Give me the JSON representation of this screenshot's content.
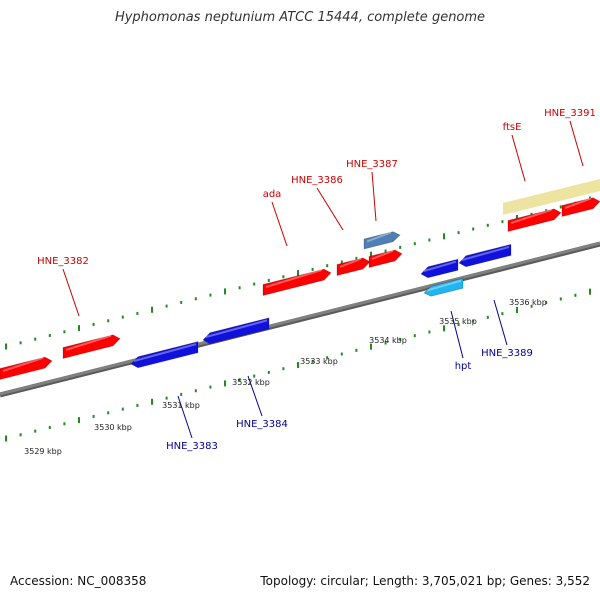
{
  "title": "Hyphomonas neptunium ATCC 15444, complete genome",
  "footer": {
    "accession": "Accession: NC_008358",
    "summary": "Topology: circular; Length: 3,705,021 bp; Genes: 3,552"
  },
  "colors": {
    "forward_gene": "#ff0000",
    "reverse_gene": "#1111dd",
    "feature_blue": "#4f7fb5",
    "feature_cyan": "#21b5f2",
    "feature_khaki": "#ece4a0",
    "forward_label": "#cc0000",
    "reverse_label": "#000099",
    "tick": "#228b22",
    "backbone": "#808080"
  },
  "scale": {
    "ticks": [
      {
        "label": "3529 kbp"
      },
      {
        "label": "3530 kbp"
      },
      {
        "label": "3531 kbp"
      },
      {
        "label": "3532 kbp"
      },
      {
        "label": "3533 kbp"
      },
      {
        "label": "3534 kbp"
      },
      {
        "label": "3535 kbp"
      },
      {
        "label": "3536 kbp"
      }
    ]
  },
  "genes": [
    {
      "label": "HNE_3382",
      "strand": "forward"
    },
    {
      "label": "HNE_3383",
      "strand": "reverse"
    },
    {
      "label": "HNE_3384",
      "strand": "reverse"
    },
    {
      "label": "ada",
      "strand": "forward"
    },
    {
      "label": "HNE_3386",
      "strand": "forward"
    },
    {
      "label": "HNE_3387",
      "strand": "forward"
    },
    {
      "label": "hpt",
      "strand": "reverse"
    },
    {
      "label": "HNE_3389",
      "strand": "reverse"
    },
    {
      "label": "ftsE",
      "strand": "forward"
    },
    {
      "label": "HNE_3391",
      "strand": "forward"
    }
  ]
}
